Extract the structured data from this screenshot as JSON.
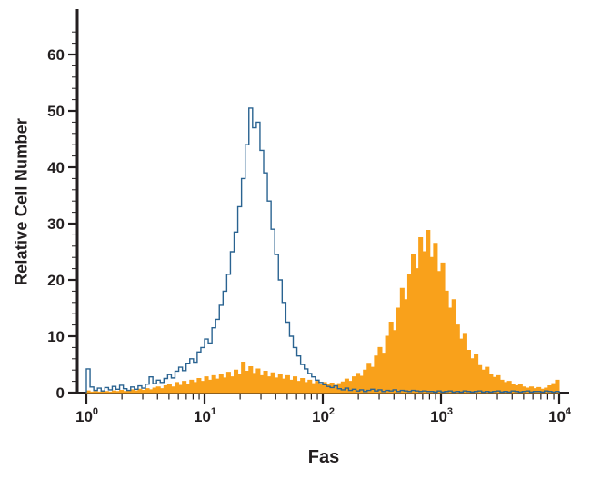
{
  "axis_color": "#231F20",
  "chart_data": {
    "type": "histogram",
    "title": "",
    "grid": false,
    "legend": "none",
    "x_axis": {
      "label": "Fas",
      "scale": "log10",
      "base": "10",
      "min_exponent": 0,
      "max_exponent": 4,
      "major_tick_exponents": [
        0,
        1,
        2,
        3,
        4
      ],
      "minor_tick_multiples": [
        2,
        3,
        4,
        5,
        6,
        7,
        8,
        9
      ]
    },
    "y_axis": {
      "label": "Relative Cell Number",
      "min": 0,
      "max": 64,
      "major_ticks": [
        0,
        10,
        20,
        30,
        40,
        50,
        60
      ],
      "minor_tick_step": 2
    },
    "bins": {
      "log10_min": 0,
      "log10_max": 4,
      "count": 128
    },
    "series": [
      {
        "name": "blue-open-histogram",
        "render": "outline",
        "color": "#2A6391",
        "values": [
          4.2,
          1.0,
          0.4,
          0.8,
          0.3,
          0.9,
          0.5,
          1.1,
          0.6,
          1.3,
          0.7,
          0.4,
          1.0,
          0.6,
          1.2,
          0.8,
          1.5,
          2.8,
          1.6,
          2.2,
          1.8,
          2.5,
          3.2,
          2.6,
          3.8,
          4.5,
          3.9,
          5.2,
          6.0,
          5.4,
          7.2,
          8.0,
          9.5,
          8.8,
          11.5,
          13.0,
          15.5,
          18.0,
          21.0,
          25.0,
          28.5,
          33.0,
          38.0,
          44.0,
          50.5,
          47.0,
          48.0,
          43.0,
          39.0,
          34.0,
          29.0,
          24.5,
          20.0,
          16.0,
          12.5,
          10.0,
          8.0,
          6.5,
          5.0,
          4.2,
          3.4,
          2.8,
          2.2,
          1.8,
          1.4,
          1.1,
          0.9,
          1.2,
          0.7,
          0.5,
          0.8,
          0.4,
          0.6,
          0.3,
          0.5,
          0.2,
          0.4,
          0.6,
          0.3,
          0.5,
          0.2,
          0.4,
          0.3,
          0.5,
          0.2,
          0.4,
          0.3,
          0.2,
          0.4,
          0.3,
          0.2,
          0.3,
          0.2,
          0.2,
          0.1,
          0.3,
          0.1,
          0.2,
          0.3,
          0.1,
          0.2,
          0.1,
          0.3,
          0.2,
          0.1,
          0.2,
          0.3,
          0.1,
          0.2,
          0.1,
          0.2,
          0.3,
          0.1,
          0.2,
          0.1,
          0.3,
          0.2,
          0.1,
          0.2,
          0.3,
          0.1,
          0.2,
          0.2,
          0.1,
          0.3,
          0.2,
          0.1,
          0.2
        ]
      },
      {
        "name": "orange-filled-histogram",
        "render": "filled",
        "color": "#F9A11B",
        "values": [
          0.3,
          0.1,
          0.2,
          0.1,
          0.3,
          0.2,
          0.1,
          0.3,
          0.2,
          0.4,
          0.2,
          0.3,
          0.5,
          0.3,
          0.6,
          0.4,
          0.7,
          0.5,
          0.8,
          1.0,
          0.7,
          1.2,
          1.5,
          1.0,
          1.8,
          1.3,
          2.0,
          1.5,
          2.2,
          1.8,
          2.5,
          2.0,
          2.8,
          2.2,
          3.0,
          2.4,
          3.3,
          2.6,
          3.6,
          2.8,
          4.0,
          3.2,
          5.4,
          3.8,
          4.6,
          3.4,
          4.2,
          3.0,
          3.8,
          2.8,
          3.5,
          2.6,
          3.2,
          2.4,
          3.0,
          2.2,
          2.8,
          2.0,
          2.5,
          1.8,
          2.2,
          1.6,
          2.0,
          1.5,
          1.8,
          1.4,
          1.7,
          1.3,
          1.6,
          1.9,
          2.4,
          2.0,
          2.8,
          3.4,
          2.9,
          4.0,
          5.2,
          4.5,
          6.5,
          8.0,
          7.0,
          10.0,
          12.5,
          11.0,
          15.0,
          18.5,
          16.5,
          21.0,
          24.5,
          22.0,
          27.5,
          25.0,
          28.8,
          24.0,
          26.5,
          21.5,
          23.0,
          18.0,
          15.0,
          16.5,
          12.0,
          9.5,
          10.5,
          7.5,
          6.0,
          6.8,
          4.8,
          4.0,
          4.5,
          3.2,
          2.7,
          3.0,
          2.2,
          1.8,
          2.0,
          1.5,
          1.2,
          1.4,
          1.0,
          0.8,
          1.0,
          0.7,
          0.9,
          0.6,
          0.8,
          1.2,
          1.6,
          2.2
        ]
      }
    ]
  }
}
